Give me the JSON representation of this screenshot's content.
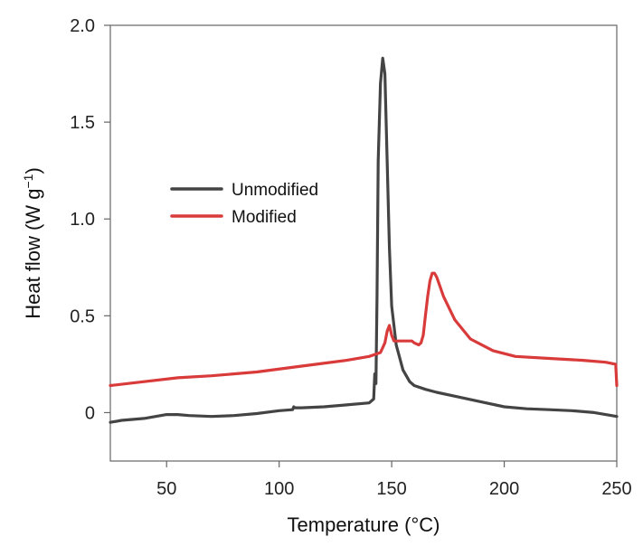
{
  "chart_data": {
    "type": "line",
    "title": "",
    "xlabel": "Temperature (°C)",
    "ylabel_main": "Heat flow (W g",
    "ylabel_sup": "−1",
    "ylabel_close": ")",
    "xlim": [
      25,
      250
    ],
    "ylim": [
      -0.25,
      2.0
    ],
    "xticks": [
      {
        "value": 50,
        "label": "50"
      },
      {
        "value": 100,
        "label": "100"
      },
      {
        "value": 150,
        "label": "150"
      },
      {
        "value": 200,
        "label": "200"
      },
      {
        "value": 250,
        "label": "250"
      }
    ],
    "yticks": [
      {
        "value": 0,
        "label": "0"
      },
      {
        "value": 0.5,
        "label": "0.5"
      },
      {
        "value": 1.0,
        "label": "1.0"
      },
      {
        "value": 1.5,
        "label": "1.5"
      },
      {
        "value": 2.0,
        "label": "2.0"
      }
    ],
    "grid": false,
    "legend_position": "center-left",
    "series": [
      {
        "name": "Unmodified",
        "color": "#444444",
        "x": [
          25,
          30,
          40,
          50,
          55,
          60,
          70,
          80,
          90,
          100,
          106,
          106.5,
          107,
          110,
          120,
          130,
          140,
          142,
          142.5,
          143,
          143.5,
          144,
          145,
          146,
          147,
          148,
          149,
          150,
          152,
          155,
          158,
          160,
          165,
          170,
          180,
          190,
          200,
          210,
          220,
          230,
          240,
          245,
          250
        ],
        "y": [
          -0.05,
          -0.04,
          -0.03,
          -0.01,
          -0.01,
          -0.015,
          -0.02,
          -0.015,
          -0.005,
          0.01,
          0.015,
          0.03,
          0.025,
          0.025,
          0.03,
          0.04,
          0.05,
          0.07,
          0.2,
          0.15,
          0.6,
          1.3,
          1.7,
          1.83,
          1.75,
          1.3,
          0.85,
          0.55,
          0.35,
          0.22,
          0.16,
          0.14,
          0.12,
          0.105,
          0.08,
          0.055,
          0.03,
          0.02,
          0.015,
          0.01,
          0.0,
          -0.01,
          -0.02
        ]
      },
      {
        "name": "Modified",
        "color": "#d93a3a",
        "x": [
          25,
          40,
          55,
          70,
          90,
          110,
          130,
          140,
          145,
          147,
          148,
          149,
          150,
          151,
          153,
          156,
          159,
          160,
          162,
          163,
          164,
          165,
          166,
          167,
          168,
          169,
          170,
          173,
          178,
          185,
          195,
          205,
          220,
          235,
          245,
          249.5,
          250
        ],
        "y": [
          0.14,
          0.16,
          0.18,
          0.19,
          0.21,
          0.24,
          0.27,
          0.29,
          0.31,
          0.36,
          0.42,
          0.45,
          0.4,
          0.37,
          0.37,
          0.37,
          0.37,
          0.36,
          0.35,
          0.36,
          0.4,
          0.5,
          0.6,
          0.68,
          0.72,
          0.72,
          0.7,
          0.6,
          0.48,
          0.38,
          0.32,
          0.29,
          0.28,
          0.27,
          0.26,
          0.25,
          0.14
        ]
      }
    ]
  }
}
